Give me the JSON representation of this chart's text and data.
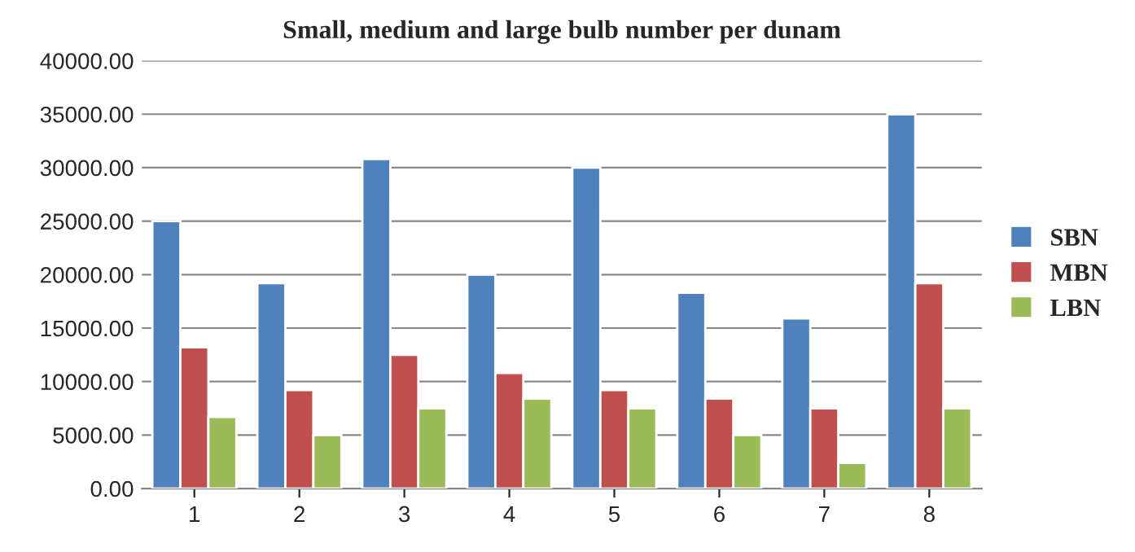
{
  "chart_data": {
    "type": "bar",
    "title": "Small, medium and large bulb number per dunam",
    "categories": [
      "1",
      "2",
      "3",
      "4",
      "5",
      "6",
      "7",
      "8"
    ],
    "series": [
      {
        "name": "SBN",
        "color": "#4f81bd",
        "values": [
          25000,
          19200,
          30800,
          20000,
          30000,
          18300,
          15900,
          35000
        ]
      },
      {
        "name": "MBN",
        "color": "#c0504d",
        "values": [
          13200,
          9200,
          12500,
          10800,
          9200,
          8400,
          7500,
          19200
        ]
      },
      {
        "name": "LBN",
        "color": "#9bbb59",
        "values": [
          6700,
          5000,
          7500,
          8400,
          7500,
          5000,
          2400,
          7500
        ]
      }
    ],
    "ylim": [
      0,
      40000
    ],
    "yticks": [
      {
        "value": 0,
        "label": "0.00"
      },
      {
        "value": 5000,
        "label": "5000.00"
      },
      {
        "value": 10000,
        "label": "10000.00"
      },
      {
        "value": 15000,
        "label": "15000.00"
      },
      {
        "value": 20000,
        "label": "20000.00"
      },
      {
        "value": 25000,
        "label": "25000.00"
      },
      {
        "value": 30000,
        "label": "30000.00"
      },
      {
        "value": 35000,
        "label": "35000.00"
      },
      {
        "value": 40000,
        "label": "40000.00"
      }
    ],
    "grid": "y",
    "legend": "right"
  }
}
